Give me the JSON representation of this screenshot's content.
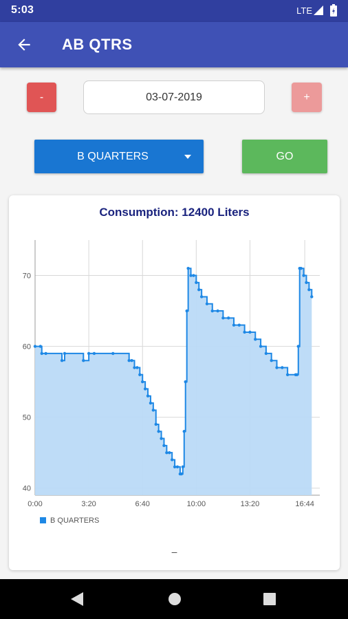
{
  "status": {
    "time": "5:03",
    "network": "LTE"
  },
  "appbar": {
    "title": "AB QTRS"
  },
  "controls": {
    "minus_label": "-",
    "plus_label": "+",
    "date_value": "03-07-2019",
    "dropdown_value": "B QUARTERS",
    "go_label": "GO"
  },
  "colors": {
    "primary": "#3f51b5",
    "status": "#303f9f",
    "dropdown": "#1976d2",
    "go": "#5cb85c",
    "minus": "#e05555",
    "plus": "#ec9a9a",
    "series": "#1e88e5",
    "fill": "#bbdaf7"
  },
  "chart_data": {
    "type": "area",
    "title": "Consumption: 12400 Liters",
    "legend": "B QUARTERS",
    "x_ticks": [
      "0:00",
      "3:20",
      "6:40",
      "10:00",
      "13:20",
      "16:44"
    ],
    "x_tick_minutes": [
      0,
      200,
      400,
      600,
      800,
      1004
    ],
    "xlim": [
      0,
      1060
    ],
    "y_ticks": [
      "40",
      "50",
      "60",
      "70"
    ],
    "ylim": [
      39,
      75
    ],
    "grid": true,
    "legend_position": "bottom-left",
    "series": [
      {
        "name": "B QUARTERS",
        "x": [
          0,
          20,
          25,
          40,
          100,
          110,
          180,
          200,
          220,
          290,
          350,
          360,
          370,
          380,
          390,
          400,
          410,
          420,
          430,
          440,
          450,
          460,
          470,
          480,
          490,
          500,
          510,
          520,
          530,
          540,
          545,
          550,
          555,
          560,
          565,
          570,
          580,
          590,
          600,
          610,
          620,
          640,
          660,
          680,
          700,
          720,
          740,
          760,
          780,
          800,
          820,
          840,
          860,
          880,
          900,
          920,
          940,
          970,
          975,
          980,
          985,
          990,
          1000,
          1010,
          1020,
          1030
        ],
        "y": [
          60,
          60,
          59,
          59,
          58,
          59,
          58,
          59,
          59,
          59,
          58,
          58,
          57,
          57,
          56,
          55,
          54,
          53,
          52,
          51,
          49,
          48,
          47,
          46,
          45,
          45,
          44,
          43,
          43,
          42,
          42,
          43,
          48,
          55,
          65,
          71,
          70,
          70,
          69,
          68,
          67,
          66,
          65,
          65,
          64,
          64,
          63,
          63,
          62,
          62,
          61,
          60,
          59,
          58,
          57,
          57,
          56,
          56,
          56,
          60,
          71,
          71,
          70,
          69,
          68,
          67
        ]
      }
    ]
  }
}
